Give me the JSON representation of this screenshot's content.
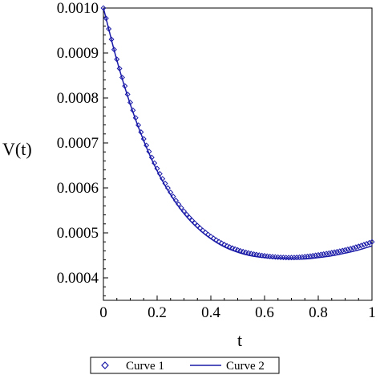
{
  "chart_data": {
    "type": "line",
    "title": "",
    "xlabel": "t",
    "ylabel": "V(t)",
    "xlim": [
      0,
      1
    ],
    "ylim": [
      0.00035,
      0.001
    ],
    "grid": false,
    "legend_position": "bottom-center",
    "x_ticks": [
      "0",
      "0.2",
      "0.4",
      "0.6",
      "0.8",
      "1"
    ],
    "x_tick_values": [
      0,
      0.2,
      0.4,
      0.6,
      0.8,
      1
    ],
    "y_ticks": [
      "0.0004",
      "0.0005",
      "0.0006",
      "0.0007",
      "0.0008",
      "0.0009",
      "0.0010"
    ],
    "y_tick_values": [
      0.0004,
      0.0005,
      0.0006,
      0.0007,
      0.0008,
      0.0009,
      0.001
    ],
    "series": [
      {
        "name": "Curve 1",
        "style": "markers",
        "marker": "diamond",
        "color": "#1a1aa8",
        "x": [
          0,
          0.05,
          0.1,
          0.15,
          0.2,
          0.25,
          0.3,
          0.35,
          0.4,
          0.45,
          0.5,
          0.55,
          0.6,
          0.65,
          0.7,
          0.75,
          0.8,
          0.85,
          0.9,
          0.95,
          1.0
        ],
        "values": [
          0.001,
          0.000886,
          0.00079,
          0.000709,
          0.000643,
          0.00059,
          0.000548,
          0.000516,
          0.000492,
          0.000474,
          0.000462,
          0.000454,
          0.000449,
          0.000446,
          0.000445,
          0.000447,
          0.000451,
          0.000456,
          0.000462,
          0.00047,
          0.00048
        ]
      },
      {
        "name": "Curve 2",
        "style": "line",
        "color": "#1a1aa8",
        "x": [
          0,
          0.05,
          0.1,
          0.15,
          0.2,
          0.25,
          0.3,
          0.35,
          0.4,
          0.45,
          0.5,
          0.55,
          0.6,
          0.65,
          0.7,
          0.75,
          0.8,
          0.85,
          0.9,
          0.95,
          1.0
        ],
        "values": [
          0.001,
          0.000884,
          0.000786,
          0.000705,
          0.000638,
          0.000585,
          0.000543,
          0.000511,
          0.000487,
          0.000469,
          0.000457,
          0.000449,
          0.000445,
          0.000443,
          0.000442,
          0.000442,
          0.000445,
          0.000449,
          0.000455,
          0.000462,
          0.000471
        ]
      }
    ]
  }
}
